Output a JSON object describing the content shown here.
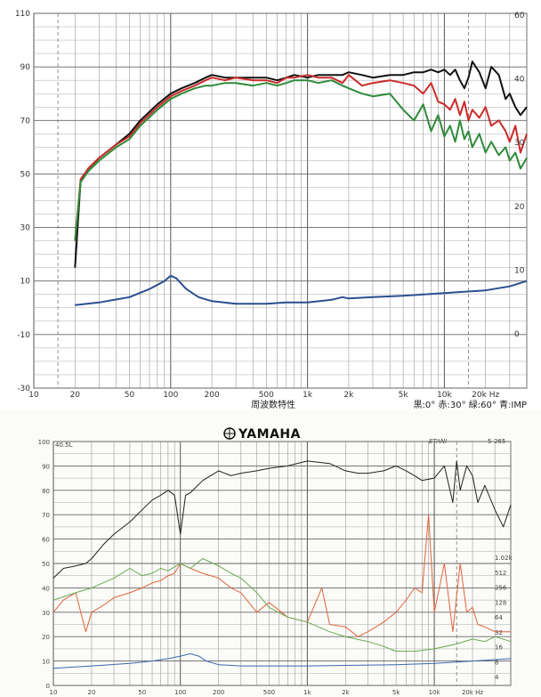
{
  "chart_data": [
    {
      "type": "line",
      "title": "",
      "xlabel": "周波数特性",
      "legend_note": "黒:0° 赤:30° 緑:60° 青:IMP",
      "x_scale": "log",
      "xlim": [
        10,
        40000
      ],
      "ylim": [
        -30,
        110
      ],
      "y_ticks": [
        110,
        90,
        70,
        50,
        30,
        10,
        -10,
        -30
      ],
      "y2_ticks": [
        "60",
        "40",
        "30",
        "20",
        "10",
        "0"
      ],
      "x_ticks": [
        "10",
        "20",
        "50",
        "100",
        "200",
        "500",
        "1k",
        "2k",
        "5k",
        "10k",
        "20k Hz"
      ],
      "x_tick_values": [
        10,
        20,
        50,
        100,
        200,
        500,
        1000,
        2000,
        5000,
        10000,
        20000
      ],
      "grid": true,
      "series": [
        {
          "color": "#111111",
          "x": [
            20,
            22,
            25,
            30,
            40,
            50,
            60,
            80,
            100,
            120,
            150,
            180,
            200,
            250,
            300,
            400,
            500,
            600,
            700,
            800,
            1000,
            1200,
            1500,
            1800,
            2000,
            2500,
            3000,
            4000,
            5000,
            6000,
            7000,
            8000,
            9000,
            10000,
            11000,
            12000,
            13000,
            14000,
            15000,
            16000,
            18000,
            20000,
            22000,
            25000,
            28000,
            30000,
            33000,
            36000,
            40000
          ],
          "y": [
            15,
            48,
            52,
            56,
            61,
            65,
            70,
            76,
            80,
            82,
            84,
            86,
            87,
            86,
            86,
            86,
            86,
            85,
            86,
            87,
            86,
            87,
            87,
            87,
            88,
            87,
            86,
            87,
            87,
            88,
            88,
            89,
            88,
            89,
            87,
            89,
            85,
            82,
            86,
            92,
            88,
            82,
            90,
            87,
            78,
            80,
            75,
            72,
            75
          ]
        },
        {
          "color": "#cc2a2a",
          "x": [
            20,
            22,
            25,
            30,
            40,
            50,
            60,
            80,
            100,
            120,
            150,
            180,
            200,
            250,
            300,
            400,
            500,
            600,
            700,
            800,
            1000,
            1200,
            1500,
            1800,
            2000,
            2500,
            3000,
            4000,
            5000,
            6000,
            7000,
            8000,
            9000,
            10000,
            11000,
            12000,
            13000,
            14000,
            15000,
            16000,
            18000,
            20000,
            22000,
            25000,
            28000,
            30000,
            33000,
            36000,
            40000
          ],
          "y": [
            25,
            48,
            52,
            56,
            61,
            64,
            69,
            75,
            79,
            81,
            83,
            85,
            86,
            85,
            86,
            85,
            85,
            84,
            86,
            86,
            87,
            86,
            86,
            84,
            87,
            83,
            84,
            85,
            84,
            83,
            80,
            84,
            77,
            76,
            74,
            78,
            72,
            77,
            70,
            74,
            71,
            75,
            68,
            70,
            66,
            62,
            68,
            58,
            65
          ]
        },
        {
          "color": "#2e8b3a",
          "x": [
            20,
            22,
            25,
            30,
            40,
            50,
            60,
            80,
            100,
            120,
            150,
            180,
            200,
            250,
            300,
            400,
            500,
            600,
            700,
            800,
            1000,
            1200,
            1500,
            1800,
            2000,
            2500,
            3000,
            4000,
            5000,
            6000,
            7000,
            8000,
            9000,
            10000,
            11000,
            12000,
            13000,
            14000,
            15000,
            16000,
            18000,
            20000,
            22000,
            25000,
            28000,
            30000,
            33000,
            36000,
            40000
          ],
          "y": [
            25,
            47,
            51,
            55,
            60,
            63,
            68,
            74,
            78,
            80,
            82,
            83,
            83,
            84,
            84,
            83,
            84,
            83,
            84,
            85,
            85,
            84,
            85,
            83,
            82,
            80,
            79,
            80,
            74,
            70,
            76,
            66,
            72,
            64,
            68,
            62,
            70,
            63,
            66,
            60,
            65,
            58,
            62,
            57,
            60,
            55,
            58,
            52,
            56
          ]
        },
        {
          "color": "#2a4f8f",
          "x": [
            20,
            30,
            50,
            70,
            90,
            100,
            110,
            130,
            160,
            200,
            300,
            500,
            700,
            1000,
            1500,
            1800,
            2000,
            3000,
            5000,
            10000,
            20000,
            30000,
            40000
          ],
          "y": [
            1,
            2,
            4,
            7,
            10,
            12,
            11,
            7,
            4,
            2.5,
            1.5,
            1.5,
            2,
            2,
            3,
            4,
            3.5,
            4,
            4.5,
            5.5,
            6.5,
            8,
            10
          ]
        }
      ]
    },
    {
      "type": "line",
      "title": "",
      "brand": "YAMAHA",
      "header_left": "40.5L",
      "header_right": "5-265",
      "header_mid": "ETANI",
      "x_scale": "log",
      "xlim": [
        10,
        40000
      ],
      "ylim": [
        0,
        100
      ],
      "y_ticks": [
        100,
        90,
        80,
        70,
        60,
        50,
        40,
        30,
        20,
        10,
        0
      ],
      "y2_ticks": [
        "1.02k",
        "512",
        "256",
        "128",
        "64",
        "32",
        "16",
        "8",
        "4"
      ],
      "x_ticks": [
        "10",
        "20",
        "50",
        "100",
        "200",
        "500",
        "1k",
        "2k",
        "5k",
        "10k",
        "20k Hz"
      ],
      "x_tick_values": [
        10,
        20,
        50,
        100,
        200,
        500,
        1000,
        2000,
        5000,
        10000,
        20000
      ],
      "grid": true,
      "series": [
        {
          "color": "#222222",
          "x": [
            10,
            12,
            15,
            18,
            20,
            25,
            30,
            40,
            50,
            60,
            70,
            80,
            90,
            100,
            110,
            120,
            150,
            200,
            250,
            300,
            400,
            500,
            700,
            1000,
            1500,
            2000,
            2500,
            3000,
            4000,
            5000,
            6000,
            7000,
            8000,
            10000,
            12000,
            14000,
            15000,
            16000,
            18000,
            20000,
            22000,
            25000,
            30000,
            35000,
            40000
          ],
          "y": [
            44,
            48,
            49,
            50,
            52,
            58,
            62,
            67,
            72,
            76,
            78,
            80,
            78,
            62,
            78,
            79,
            84,
            88,
            86,
            87,
            88,
            89,
            90,
            92,
            91,
            88,
            87,
            87,
            88,
            90,
            88,
            86,
            84,
            85,
            90,
            75,
            92,
            80,
            90,
            86,
            75,
            82,
            72,
            65,
            74
          ]
        },
        {
          "color": "#e0643a",
          "x": [
            10,
            12,
            15,
            18,
            20,
            25,
            30,
            40,
            50,
            60,
            70,
            80,
            90,
            100,
            120,
            150,
            200,
            250,
            300,
            400,
            500,
            700,
            1000,
            1300,
            1500,
            2000,
            2500,
            3000,
            4000,
            5000,
            6000,
            7000,
            8000,
            9000,
            10000,
            12000,
            14000,
            16000,
            18000,
            20000,
            22000,
            25000,
            30000,
            40000
          ],
          "y": [
            30,
            35,
            38,
            22,
            30,
            33,
            36,
            38,
            40,
            42,
            43,
            45,
            46,
            50,
            48,
            46,
            44,
            40,
            38,
            30,
            34,
            28,
            26,
            40,
            25,
            24,
            20,
            22,
            26,
            30,
            35,
            40,
            38,
            70,
            30,
            50,
            22,
            50,
            30,
            32,
            25,
            24,
            22,
            22
          ]
        },
        {
          "color": "#6aa84f",
          "x": [
            10,
            15,
            20,
            30,
            40,
            50,
            60,
            70,
            80,
            100,
            120,
            150,
            200,
            250,
            300,
            400,
            500,
            700,
            1000,
            1500,
            2000,
            3000,
            4000,
            5000,
            7000,
            10000,
            15000,
            20000,
            25000,
            30000,
            40000
          ],
          "y": [
            35,
            38,
            40,
            44,
            48,
            45,
            46,
            48,
            47,
            50,
            48,
            52,
            49,
            46,
            44,
            38,
            32,
            28,
            26,
            22,
            20,
            18,
            16,
            14,
            14,
            15,
            17,
            19,
            18,
            20,
            18
          ]
        },
        {
          "color": "#3b68b0",
          "x": [
            10,
            20,
            40,
            60,
            80,
            100,
            120,
            140,
            160,
            200,
            300,
            500,
            1000,
            2000,
            5000,
            10000,
            20000,
            40000
          ],
          "y": [
            7,
            8,
            9,
            10,
            11,
            12,
            13,
            12,
            10,
            8.5,
            8,
            8,
            8,
            8.2,
            8.5,
            9,
            10,
            11
          ]
        }
      ]
    }
  ]
}
